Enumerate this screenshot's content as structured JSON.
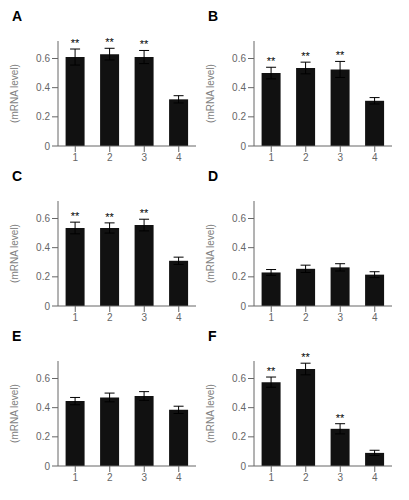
{
  "chart_data": [
    {
      "type": "bar",
      "title": "A",
      "ylabel": "(mRNA level)",
      "categories": [
        "1",
        "2",
        "3",
        "4"
      ],
      "values": [
        0.61,
        0.63,
        0.61,
        0.32
      ],
      "errors": [
        0.055,
        0.04,
        0.045,
        0.025
      ],
      "annotations": [
        {
          "x": "1",
          "text": "**"
        },
        {
          "x": "2",
          "text": "**"
        },
        {
          "x": "3",
          "text": "**"
        }
      ],
      "color": "#111111",
      "ylim": [
        0,
        0.72
      ],
      "yticks": [
        0,
        0.2,
        0.4,
        0.6
      ],
      "grid": false
    },
    {
      "type": "bar",
      "title": "B",
      "ylabel": "(mRNA level)",
      "categories": [
        "1",
        "2",
        "3",
        "4"
      ],
      "values": [
        0.5,
        0.535,
        0.525,
        0.31
      ],
      "errors": [
        0.04,
        0.04,
        0.055,
        0.022
      ],
      "annotations": [
        {
          "x": "1",
          "text": "**"
        },
        {
          "x": "2",
          "text": "**"
        },
        {
          "x": "3",
          "text": "**"
        }
      ],
      "color": "#111111",
      "ylim": [
        0,
        0.72
      ],
      "yticks": [
        0,
        0.2,
        0.4,
        0.6
      ],
      "grid": false
    },
    {
      "type": "bar",
      "title": "C",
      "ylabel": "(mRNA level)",
      "categories": [
        "1",
        "2",
        "3",
        "4"
      ],
      "values": [
        0.535,
        0.535,
        0.555,
        0.31
      ],
      "errors": [
        0.04,
        0.035,
        0.04,
        0.025
      ],
      "annotations": [
        {
          "x": "1",
          "text": "**"
        },
        {
          "x": "2",
          "text": "**"
        },
        {
          "x": "3",
          "text": "**"
        }
      ],
      "color": "#111111",
      "ylim": [
        0,
        0.72
      ],
      "yticks": [
        0,
        0.2,
        0.4,
        0.6
      ],
      "grid": false
    },
    {
      "type": "bar",
      "title": "D",
      "ylabel": "(mRNA level)",
      "categories": [
        "1",
        "2",
        "3",
        "4"
      ],
      "values": [
        0.23,
        0.255,
        0.265,
        0.215
      ],
      "errors": [
        0.02,
        0.025,
        0.025,
        0.02
      ],
      "color": "#111111",
      "ylim": [
        0,
        0.72
      ],
      "yticks": [
        0,
        0.2,
        0.4,
        0.6
      ],
      "grid": false
    },
    {
      "type": "bar",
      "title": "E",
      "ylabel": "(mRNA level)",
      "categories": [
        "1",
        "2",
        "3",
        "4"
      ],
      "values": [
        0.445,
        0.47,
        0.48,
        0.385
      ],
      "errors": [
        0.025,
        0.03,
        0.03,
        0.025
      ],
      "color": "#111111",
      "ylim": [
        0,
        0.72
      ],
      "yticks": [
        0,
        0.2,
        0.4,
        0.6
      ],
      "grid": false
    },
    {
      "type": "bar",
      "title": "F",
      "ylabel": "(mRNA level)",
      "categories": [
        "1",
        "2",
        "3",
        "4"
      ],
      "values": [
        0.575,
        0.665,
        0.255,
        0.09
      ],
      "errors": [
        0.035,
        0.04,
        0.035,
        0.018
      ],
      "annotations": [
        {
          "x": "1",
          "text": "**"
        },
        {
          "x": "2",
          "text": "**"
        },
        {
          "x": "3",
          "text": "**"
        }
      ],
      "color": "#111111",
      "ylim": [
        0,
        0.72
      ],
      "yticks": [
        0,
        0.2,
        0.4,
        0.6
      ],
      "grid": false
    }
  ]
}
